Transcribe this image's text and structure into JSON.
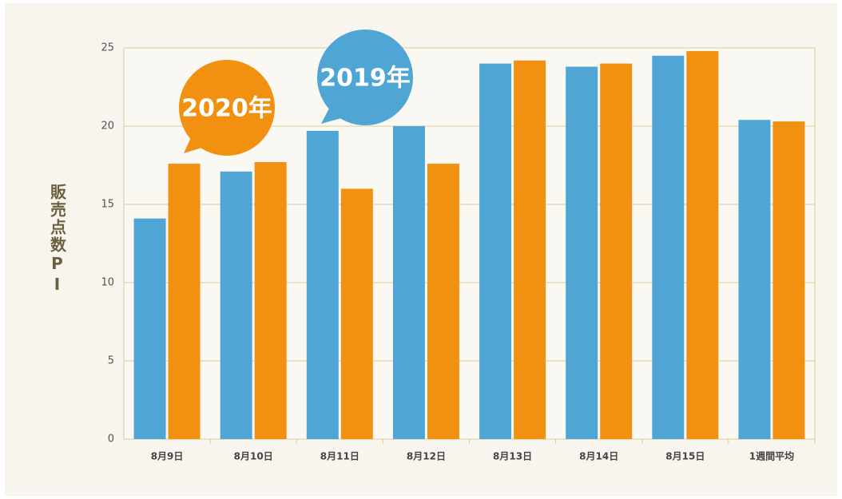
{
  "chart_data": {
    "type": "bar",
    "y_label": "販売点数PI",
    "categories": [
      "8月9日",
      "8月10日",
      "8月11日",
      "8月12日",
      "8月13日",
      "8月14日",
      "8月15日",
      "1週間平均"
    ],
    "series": [
      {
        "name": "2019年",
        "color": "#4fa6d5",
        "values": [
          14.1,
          17.1,
          19.7,
          20.0,
          24.0,
          23.8,
          24.5,
          20.4
        ]
      },
      {
        "name": "2020年",
        "color": "#f29111",
        "values": [
          17.6,
          17.7,
          16.0,
          17.6,
          24.2,
          24.0,
          24.8,
          20.3
        ]
      }
    ],
    "ylim": [
      0,
      25
    ],
    "yticks": [
      0,
      5,
      10,
      15,
      20,
      25
    ],
    "grid": true
  }
}
